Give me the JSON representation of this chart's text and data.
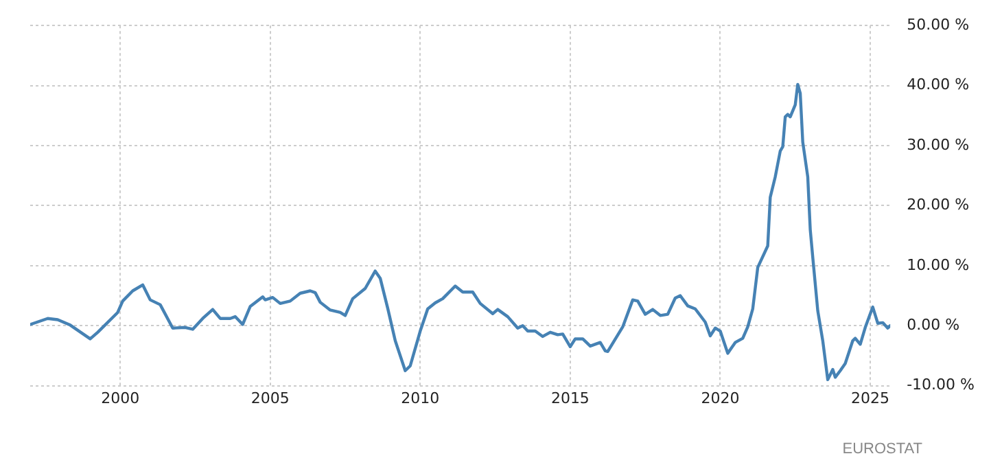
{
  "chart_data": {
    "type": "line",
    "x": [
      "1997-01",
      "1997-08",
      "1997-12",
      "1998-05",
      "1999-01",
      "1999-04",
      "1999-12",
      "2000-02",
      "2000-06",
      "2000-10",
      "2001-01",
      "2001-05",
      "2001-10",
      "2002-03",
      "2002-06",
      "2002-10",
      "2003-02",
      "2003-05",
      "2003-09",
      "2003-11",
      "2004-02",
      "2004-05",
      "2004-10",
      "2004-11",
      "2005-02",
      "2005-05",
      "2005-09",
      "2006-01",
      "2006-05",
      "2006-07",
      "2006-09",
      "2007-01",
      "2007-05",
      "2007-07",
      "2007-10",
      "2008-03",
      "2008-07",
      "2008-09",
      "2008-12",
      "2009-03",
      "2009-07",
      "2009-09",
      "2010-01",
      "2010-04",
      "2010-07",
      "2010-10",
      "2011-03",
      "2011-06",
      "2011-10",
      "2012-01",
      "2012-06",
      "2012-08",
      "2012-12",
      "2013-04",
      "2013-06",
      "2013-08",
      "2013-11",
      "2014-02",
      "2014-05",
      "2014-08",
      "2014-10",
      "2015-01",
      "2015-03",
      "2015-06",
      "2015-09",
      "2016-01",
      "2016-03",
      "2016-04",
      "2016-10",
      "2017-02",
      "2017-04",
      "2017-07",
      "2017-10",
      "2018-01",
      "2018-04",
      "2018-07",
      "2018-09",
      "2018-12",
      "2019-03",
      "2019-07",
      "2019-09",
      "2019-11",
      "2020-01",
      "2020-04",
      "2020-07",
      "2020-10",
      "2020-12",
      "2021-02",
      "2021-04",
      "2021-08",
      "2021-09",
      "2021-11",
      "2022-01",
      "2022-02",
      "2022-03",
      "2022-04",
      "2022-05",
      "2022-07",
      "2022-08",
      "2022-09",
      "2022-10",
      "2022-12",
      "2023-01",
      "2023-02",
      "2023-04",
      "2023-06",
      "2023-08",
      "2023-10",
      "2023-11",
      "2024-01",
      "2024-03",
      "2024-06",
      "2024-07",
      "2024-09",
      "2024-11",
      "2025-02",
      "2025-04",
      "2025-06",
      "2025-08",
      "2025-09"
    ],
    "series": [
      {
        "color": "#4682b4",
        "values": [
          0.2,
          1.2,
          1.0,
          0.1,
          -2.2,
          -1.1,
          2.2,
          4.1,
          5.8,
          6.8,
          4.3,
          3.5,
          -0.4,
          -0.3,
          -0.6,
          1.2,
          2.7,
          1.2,
          1.2,
          1.5,
          0.2,
          3.2,
          4.8,
          4.3,
          4.7,
          3.7,
          4.1,
          5.4,
          5.8,
          5.5,
          3.9,
          2.6,
          2.2,
          1.7,
          4.5,
          6.2,
          9.1,
          7.9,
          2.9,
          -2.5,
          -7.5,
          -6.7,
          -0.9,
          2.8,
          3.8,
          4.5,
          6.6,
          5.6,
          5.6,
          3.7,
          2.0,
          2.7,
          1.5,
          -0.4,
          0,
          -0.9,
          -0.9,
          -1.8,
          -1.1,
          -1.5,
          -1.4,
          -3.5,
          -2.2,
          -2.2,
          -3.4,
          -2.8,
          -4.2,
          -4.3,
          -0.2,
          4.3,
          4.1,
          1.9,
          2.7,
          1.7,
          1.9,
          4.6,
          5.0,
          3.3,
          2.8,
          0.6,
          -1.7,
          -0.4,
          -0.9,
          -4.6,
          -2.8,
          -2.1,
          -0.2,
          2.8,
          9.7,
          13.3,
          21.4,
          24.8,
          29.1,
          29.8,
          34.8,
          35.2,
          34.8,
          36.8,
          40.2,
          38.7,
          30.6,
          24.8,
          16,
          11.4,
          2.5,
          -2.5,
          -9.0,
          -7.3,
          -8.6,
          -7.5,
          -6.3,
          -2.5,
          -2.1,
          -3.1,
          -0.3,
          3.1,
          0.4,
          0.5,
          -0.4,
          0.0
        ]
      }
    ],
    "xlim": [
      "1997-01",
      "2025-09"
    ],
    "xticks": [
      {
        "value": "2000-01",
        "label": "2000"
      },
      {
        "value": "2005-01",
        "label": "2005"
      },
      {
        "value": "2010-01",
        "label": "2010"
      },
      {
        "value": "2015-01",
        "label": "2015"
      },
      {
        "value": "2020-01",
        "label": "2020"
      },
      {
        "value": "2025-01",
        "label": "2025"
      }
    ],
    "ylim": [
      -10,
      50
    ],
    "yticks": [
      {
        "value": -10,
        "label": "-10.00 %"
      },
      {
        "value": 0,
        "label": "0.00 %"
      },
      {
        "value": 10,
        "label": "10.00 %"
      },
      {
        "value": 20,
        "label": "20.00 %"
      },
      {
        "value": 30,
        "label": "30.00 %"
      },
      {
        "value": 40,
        "label": "40.00 %"
      },
      {
        "value": 50,
        "label": "50.00 %"
      }
    ],
    "grid": true,
    "annotations": [
      "EUROSTAT"
    ]
  }
}
